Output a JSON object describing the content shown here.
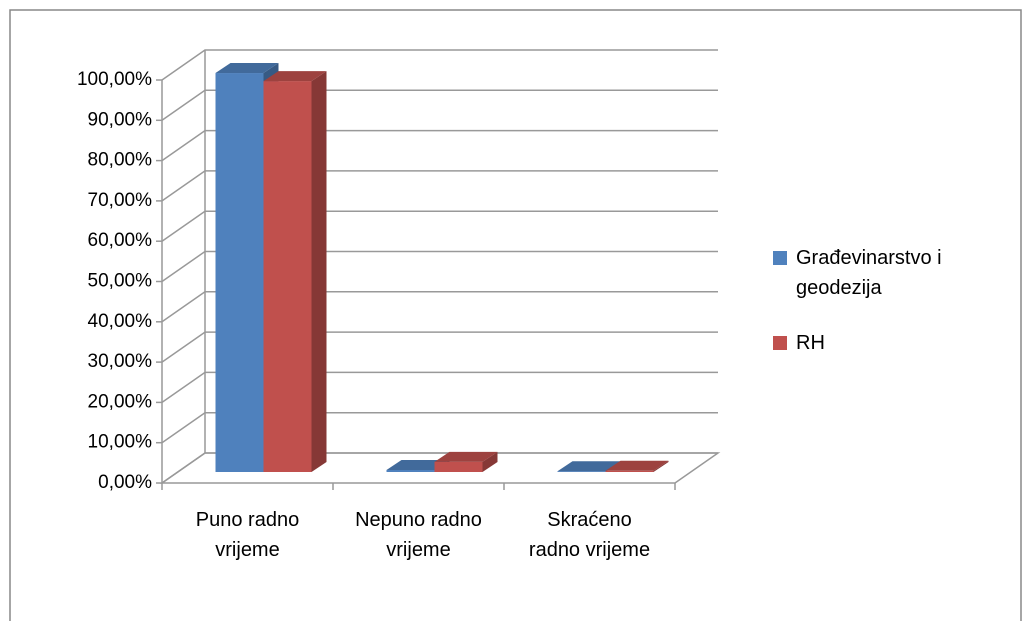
{
  "chart_data": {
    "type": "bar3d",
    "categories": [
      "Puno radno vrijeme",
      "Nepuno radno vrijeme",
      "Skraćeno radno vrijeme"
    ],
    "series": [
      {
        "name": "Građevinarstvo i geodezija",
        "color": "#4f81bd",
        "values": [
          99,
          0.5,
          0.2
        ]
      },
      {
        "name": "RH",
        "color": "#c0504d",
        "values": [
          97,
          2.5,
          0.3
        ]
      }
    ],
    "ylim": [
      0,
      100
    ],
    "yticks": [
      {
        "value": 0,
        "label": "0,00%"
      },
      {
        "value": 10,
        "label": "10,00%"
      },
      {
        "value": 20,
        "label": "20,00%"
      },
      {
        "value": 30,
        "label": "30,00%"
      },
      {
        "value": 40,
        "label": "40,00%"
      },
      {
        "value": 50,
        "label": "50,00%"
      },
      {
        "value": 60,
        "label": "60,00%"
      },
      {
        "value": 70,
        "label": "70,00%"
      },
      {
        "value": 80,
        "label": "80,00%"
      },
      {
        "value": 90,
        "label": "90,00%"
      },
      {
        "value": 100,
        "label": "100,00%"
      }
    ],
    "grid": true,
    "legend": "right"
  }
}
